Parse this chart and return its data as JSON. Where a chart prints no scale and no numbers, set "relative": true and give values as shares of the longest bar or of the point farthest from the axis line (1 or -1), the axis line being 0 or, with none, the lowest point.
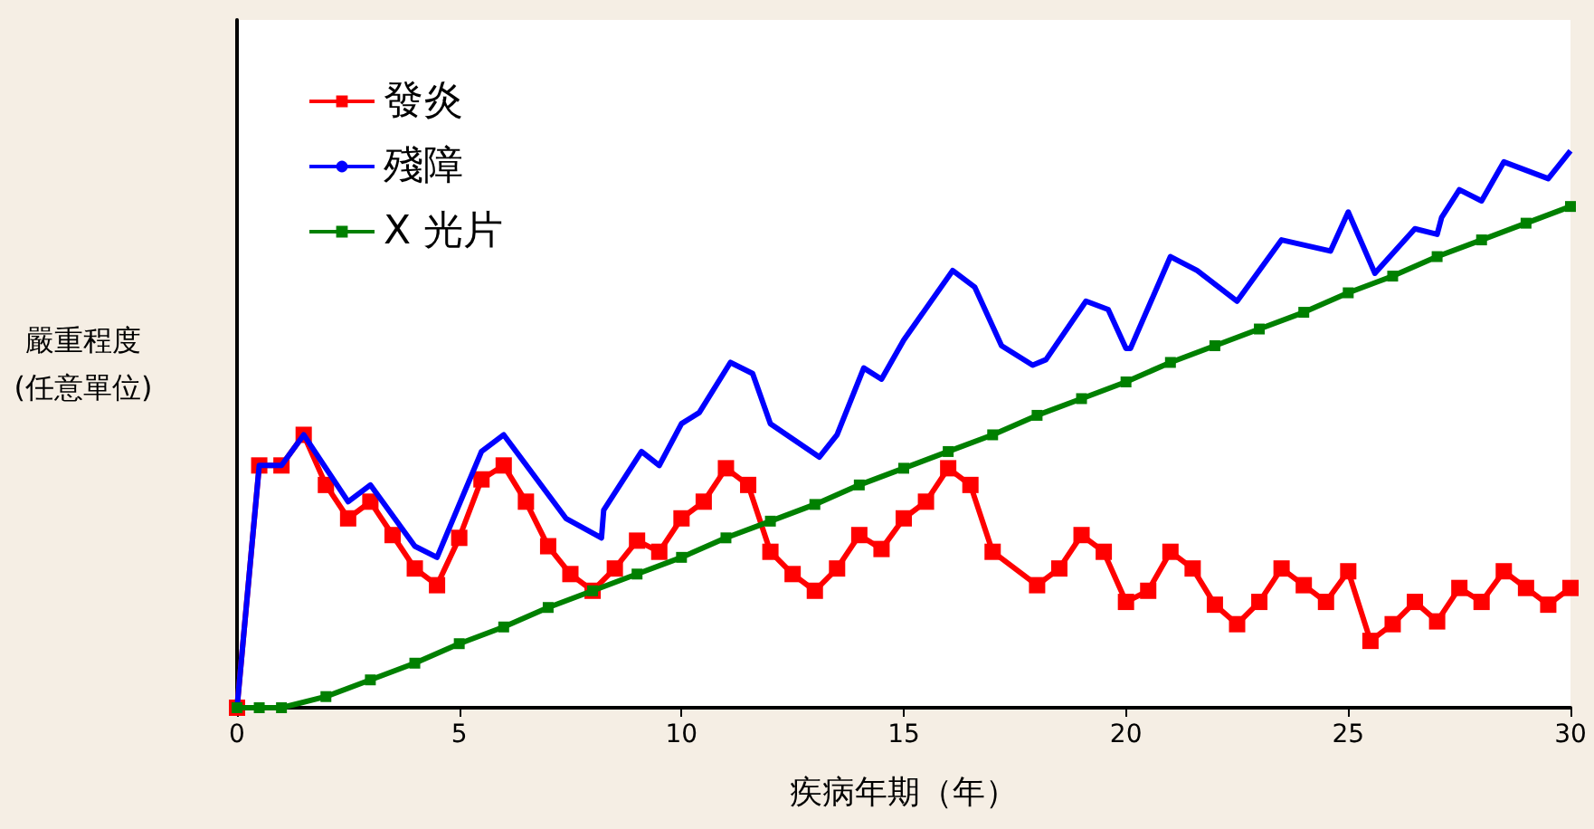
{
  "chart_data": {
    "type": "line",
    "relative": true,
    "xlabel": "疾病年期（年）",
    "ylabel": "嚴重程度\n(任意單位)",
    "xlim": [
      0,
      30
    ],
    "xticks": [
      0,
      5,
      10,
      15,
      20,
      25,
      30
    ],
    "grid": false,
    "legend": "top left",
    "series": [
      {
        "name": "發炎",
        "color": "#ff0000",
        "marker": "square",
        "x": [
          0,
          0.5,
          1,
          1.5,
          2,
          2.5,
          3,
          3.5,
          4,
          4.5,
          5,
          5.5,
          6,
          6.5,
          7,
          7.5,
          8,
          8.5,
          9,
          9.5,
          10,
          10.5,
          11,
          11.5,
          12,
          12.5,
          13,
          13.5,
          14,
          14.5,
          15,
          15.5,
          16,
          16.5,
          17,
          18,
          18.5,
          19,
          19.5,
          20,
          20.5,
          21,
          21.5,
          22,
          22.5,
          23,
          23.5,
          24,
          24.5,
          25,
          25.5,
          26,
          26.5,
          27,
          27.5,
          28,
          28.5,
          29,
          29.5,
          30
        ],
        "values": [
          0,
          0.435,
          0.435,
          0.49,
          0.4,
          0.34,
          0.37,
          0.31,
          0.25,
          0.22,
          0.305,
          0.41,
          0.435,
          0.37,
          0.29,
          0.24,
          0.21,
          0.25,
          0.3,
          0.28,
          0.34,
          0.37,
          0.43,
          0.4,
          0.28,
          0.24,
          0.21,
          0.25,
          0.31,
          0.285,
          0.34,
          0.37,
          0.43,
          0.4,
          0.28,
          0.22,
          0.25,
          0.31,
          0.28,
          0.19,
          0.21,
          0.28,
          0.25,
          0.185,
          0.15,
          0.19,
          0.25,
          0.22,
          0.19,
          0.245,
          0.12,
          0.15,
          0.19,
          0.155,
          0.215,
          0.19,
          0.245,
          0.215,
          0.185,
          0.215
        ]
      },
      {
        "name": "殘障",
        "color": "#0000ff",
        "marker": "none",
        "x": [
          0,
          0.5,
          1,
          1.5,
          2.5,
          3,
          4,
          4.5,
          5.5,
          6,
          7.4,
          8.2,
          8.25,
          9.1,
          9.5,
          10,
          10.4,
          11.1,
          11.6,
          12,
          13.1,
          13.5,
          14.1,
          14.5,
          15,
          16.1,
          16.6,
          17.2,
          17.9,
          18.2,
          19.1,
          19.6,
          20,
          20.1,
          21,
          21.6,
          22.5,
          23.5,
          24.6,
          25,
          25.6,
          26.5,
          27,
          27.1,
          27.5,
          28,
          28.5,
          29.5,
          30
        ],
        "values": [
          0,
          0.435,
          0.435,
          0.49,
          0.37,
          0.4,
          0.29,
          0.27,
          0.46,
          0.49,
          0.34,
          0.305,
          0.355,
          0.46,
          0.435,
          0.51,
          0.53,
          0.62,
          0.6,
          0.51,
          0.45,
          0.49,
          0.61,
          0.59,
          0.66,
          0.785,
          0.755,
          0.65,
          0.615,
          0.625,
          0.73,
          0.715,
          0.645,
          0.645,
          0.81,
          0.785,
          0.73,
          0.84,
          0.82,
          0.89,
          0.78,
          0.86,
          0.85,
          0.88,
          0.93,
          0.91,
          0.98,
          0.95,
          1.0
        ]
      },
      {
        "name": "X 光片",
        "color": "#008000",
        "marker": "square",
        "x": [
          0,
          0.5,
          1,
          2,
          3,
          4,
          5,
          6,
          7,
          8,
          9,
          10,
          11,
          12,
          13,
          14,
          15,
          16,
          17,
          18,
          19,
          20,
          21,
          22,
          23,
          24,
          25,
          26,
          27,
          28,
          29,
          30
        ],
        "values": [
          0,
          0,
          0,
          0.02,
          0.05,
          0.08,
          0.115,
          0.145,
          0.18,
          0.21,
          0.24,
          0.27,
          0.305,
          0.335,
          0.365,
          0.4,
          0.43,
          0.46,
          0.49,
          0.525,
          0.555,
          0.585,
          0.62,
          0.65,
          0.68,
          0.71,
          0.745,
          0.775,
          0.81,
          0.84,
          0.87,
          0.9
        ]
      }
    ]
  }
}
